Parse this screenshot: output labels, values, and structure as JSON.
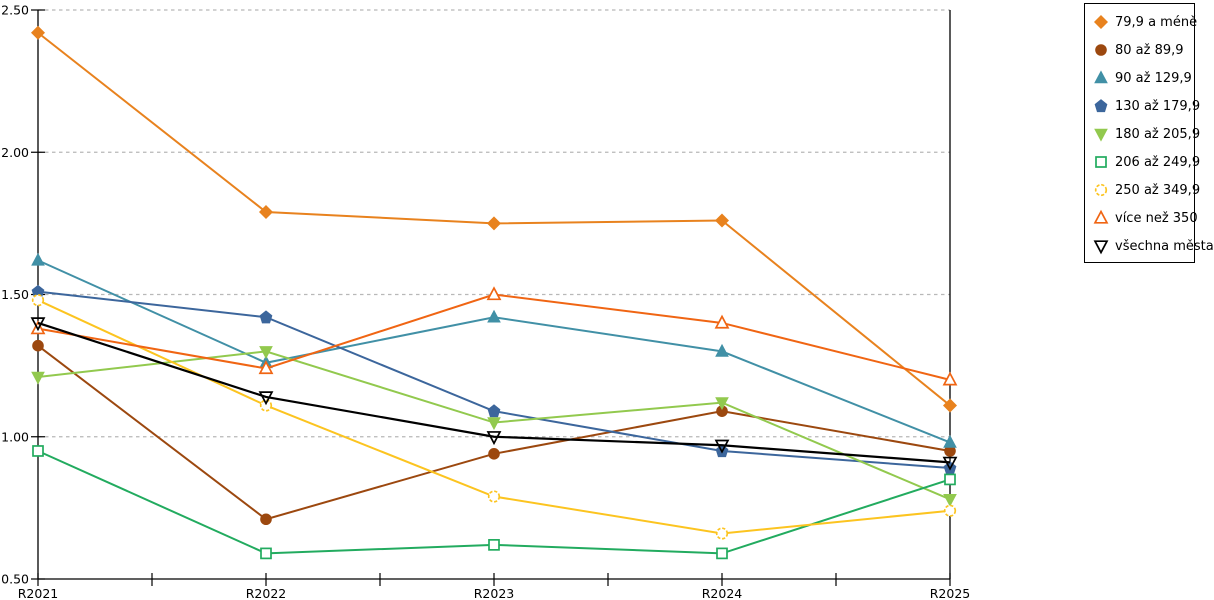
{
  "chart_data": {
    "type": "line",
    "title": "",
    "xlabel": "",
    "ylabel": "",
    "categories": [
      "R2021",
      "R2022",
      "R2023",
      "R2024",
      "R2025"
    ],
    "series": [
      {
        "name": "79,9 a méně",
        "marker": "diamond",
        "marker_fill": "solid",
        "color": "#e8821e",
        "values": [
          2.42,
          1.79,
          1.75,
          1.76,
          1.11
        ]
      },
      {
        "name": "80 až 89,9",
        "marker": "circle",
        "marker_fill": "solid",
        "color": "#9c480f",
        "values": [
          1.32,
          0.71,
          0.94,
          1.09,
          0.95
        ]
      },
      {
        "name": "90 až 129,9",
        "marker": "triangle-up",
        "marker_fill": "solid",
        "color": "#4190a6",
        "values": [
          1.62,
          1.26,
          1.42,
          1.3,
          0.98
        ]
      },
      {
        "name": "130 až 179,9",
        "marker": "pentagon",
        "marker_fill": "solid",
        "color": "#3c669c",
        "values": [
          1.51,
          1.42,
          1.09,
          0.95,
          0.89
        ]
      },
      {
        "name": "180 až 205,9",
        "marker": "triangle-down",
        "marker_fill": "solid",
        "color": "#92c94e",
        "values": [
          1.21,
          1.3,
          1.05,
          1.12,
          0.78
        ]
      },
      {
        "name": "206 až 249,9",
        "marker": "square",
        "marker_fill": "open",
        "color": "#22ab5f",
        "values": [
          0.95,
          0.59,
          0.62,
          0.59,
          0.85
        ]
      },
      {
        "name": "250 až 349,9",
        "marker": "circle-dash",
        "marker_fill": "open",
        "color": "#fcc420",
        "values": [
          1.48,
          1.11,
          0.79,
          0.66,
          0.74
        ]
      },
      {
        "name": "více než 350",
        "marker": "triangle-up",
        "marker_fill": "open",
        "color": "#f06513",
        "values": [
          1.38,
          1.24,
          1.5,
          1.4,
          1.2
        ]
      },
      {
        "name": "všechna města",
        "marker": "triangle-down",
        "marker_fill": "open",
        "color": "#000000",
        "values": [
          1.4,
          1.14,
          1.0,
          0.97,
          0.91
        ]
      }
    ],
    "ylim": [
      0.5,
      2.5
    ],
    "ytick_step": 0.5,
    "ytick_labels": [
      "0.50",
      "1.00",
      "1.50",
      "2.00",
      "2.50"
    ],
    "grid": "horizontal dashed gray",
    "gridline_color": "#b8b8b8",
    "axis_color": "#000000",
    "legend_position": "top-right outside plot"
  }
}
